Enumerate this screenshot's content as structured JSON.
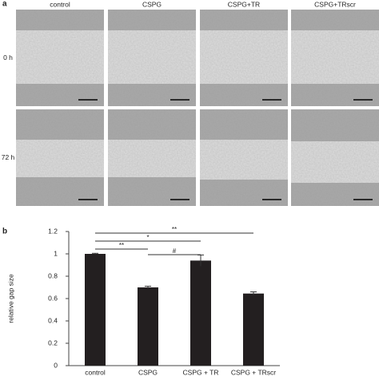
{
  "panel_a": {
    "label": "a",
    "columns": [
      "control",
      "CSPG",
      "CSPG+TR",
      "CSPG+TRscr"
    ],
    "rows": [
      "0 h",
      "72 h"
    ]
  },
  "panel_b_label": "b",
  "chart_data": {
    "type": "bar",
    "ylabel": "relative gap size",
    "categories": [
      "control",
      "CSPG",
      "CSPG + TR",
      "CSPG + TRscr"
    ],
    "values": [
      1.0,
      0.7,
      0.94,
      0.645
    ],
    "errors": [
      0.005,
      0.01,
      0.05,
      0.015
    ],
    "color": "#231f20",
    "ylim": [
      0,
      1.2
    ],
    "yticks": [
      0,
      0.2,
      0.4,
      0.6,
      0.8,
      1,
      1.2
    ],
    "significance": [
      {
        "label": "**",
        "from": 0,
        "to": 3
      },
      {
        "label": "*",
        "from": 0,
        "to": 2
      },
      {
        "label": "**",
        "from": 0,
        "to": 1
      },
      {
        "label": "#",
        "from": 1,
        "to": 2
      }
    ]
  }
}
